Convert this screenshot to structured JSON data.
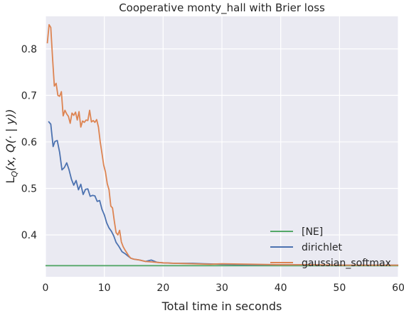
{
  "chart_data": {
    "type": "line",
    "title": "Cooperative monty_hall with Brier loss",
    "xlabel": "Total time in seconds",
    "ylabel": "L_Q(x, Q(· | y))",
    "xlim": [
      0,
      60
    ],
    "ylim": [
      0.31,
      0.87
    ],
    "x_ticks": [
      "0",
      "10",
      "20",
      "30",
      "40",
      "50",
      "60"
    ],
    "y_ticks": [
      "0.4",
      "0.5",
      "0.6",
      "0.7",
      "0.8"
    ],
    "x_tick_values": [
      0,
      10,
      20,
      30,
      40,
      50,
      60
    ],
    "y_tick_values": [
      0.4,
      0.5,
      0.6,
      0.7,
      0.8
    ],
    "grid": true,
    "legend_position": "lower-right",
    "series": [
      {
        "name": "[NE]",
        "color": "#55a868",
        "x": [
          0,
          60
        ],
        "y": [
          0.334,
          0.334
        ]
      },
      {
        "name": "dirichlet",
        "color": "#4c72b0",
        "x": [
          0.5,
          0.9,
          1.3,
          1.6,
          2.0,
          2.4,
          2.8,
          3.2,
          3.6,
          4.0,
          4.4,
          4.8,
          5.2,
          5.6,
          6.0,
          6.4,
          6.8,
          7.2,
          7.6,
          8.0,
          8.4,
          8.8,
          9.2,
          9.6,
          10.0,
          10.4,
          10.8,
          11.2,
          11.6,
          12.0,
          12.5,
          13.0,
          13.5,
          14.0,
          14.5,
          15.0,
          16.0,
          17.0,
          18.0,
          19.0,
          20.0,
          22.0,
          25.0,
          27.0,
          30.0,
          35.0,
          40.0,
          45.0,
          50.0,
          55.0,
          60.0
        ],
        "y": [
          0.644,
          0.638,
          0.59,
          0.601,
          0.603,
          0.578,
          0.54,
          0.545,
          0.555,
          0.54,
          0.52,
          0.507,
          0.517,
          0.497,
          0.509,
          0.487,
          0.498,
          0.499,
          0.483,
          0.485,
          0.484,
          0.472,
          0.474,
          0.455,
          0.443,
          0.426,
          0.415,
          0.408,
          0.398,
          0.384,
          0.375,
          0.364,
          0.36,
          0.355,
          0.35,
          0.348,
          0.346,
          0.343,
          0.346,
          0.341,
          0.34,
          0.339,
          0.339,
          0.338,
          0.337,
          0.336,
          0.336,
          0.336,
          0.335,
          0.335,
          0.335
        ]
      },
      {
        "name": "gaussian_softmax",
        "color": "#dd8452",
        "x": [
          0.3,
          0.6,
          0.9,
          1.2,
          1.5,
          1.8,
          2.1,
          2.4,
          2.7,
          3.0,
          3.3,
          3.6,
          3.9,
          4.2,
          4.5,
          4.8,
          5.1,
          5.4,
          5.7,
          6.0,
          6.3,
          6.6,
          6.9,
          7.2,
          7.5,
          7.8,
          8.1,
          8.4,
          8.7,
          9.0,
          9.3,
          9.6,
          9.9,
          10.2,
          10.5,
          10.8,
          11.1,
          11.4,
          11.7,
          12.0,
          12.3,
          12.6,
          12.9,
          13.2,
          13.5,
          13.8,
          14.1,
          14.5,
          15.0,
          16.0,
          17.0,
          18.0,
          19.0,
          20.0,
          22.0,
          25.0,
          28.0,
          30.0,
          35.0,
          40.0,
          45.0,
          50.0,
          55.0,
          60.0
        ],
        "y": [
          0.812,
          0.852,
          0.846,
          0.78,
          0.72,
          0.726,
          0.7,
          0.698,
          0.708,
          0.656,
          0.668,
          0.66,
          0.655,
          0.64,
          0.662,
          0.657,
          0.664,
          0.647,
          0.665,
          0.632,
          0.645,
          0.642,
          0.647,
          0.646,
          0.668,
          0.643,
          0.646,
          0.642,
          0.648,
          0.632,
          0.6,
          0.575,
          0.55,
          0.535,
          0.51,
          0.497,
          0.462,
          0.458,
          0.43,
          0.405,
          0.4,
          0.41,
          0.385,
          0.375,
          0.368,
          0.362,
          0.356,
          0.35,
          0.348,
          0.346,
          0.343,
          0.342,
          0.341,
          0.34,
          0.339,
          0.338,
          0.337,
          0.338,
          0.337,
          0.336,
          0.336,
          0.335,
          0.335,
          0.335
        ]
      }
    ]
  }
}
